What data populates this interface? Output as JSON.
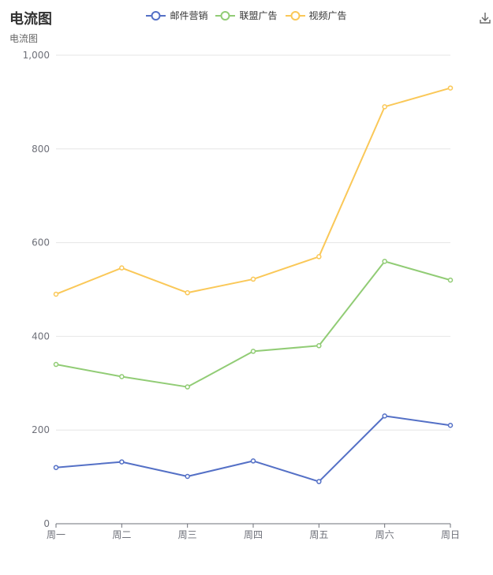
{
  "title": "电流图",
  "subtitle": "电流图",
  "toolbox": {
    "download_icon": "download-icon"
  },
  "chart_data": {
    "type": "line",
    "categories": [
      "周一",
      "周二",
      "周三",
      "周四",
      "周五",
      "周六",
      "周日"
    ],
    "ylim": [
      0,
      1000
    ],
    "yticks": [
      "0",
      "200",
      "400",
      "600",
      "800",
      "1,000"
    ],
    "grid": true,
    "legend_position": "top",
    "series": [
      {
        "name": "邮件营销",
        "color": "#5470c6",
        "values": [
          120,
          132,
          101,
          134,
          90,
          230,
          210
        ]
      },
      {
        "name": "联盟广告",
        "color": "#91cc75",
        "values": [
          340,
          314,
          292,
          368,
          380,
          560,
          520
        ]
      },
      {
        "name": "视频广告",
        "color": "#fac858",
        "values": [
          490,
          546,
          493,
          522,
          570,
          890,
          930
        ]
      }
    ]
  }
}
